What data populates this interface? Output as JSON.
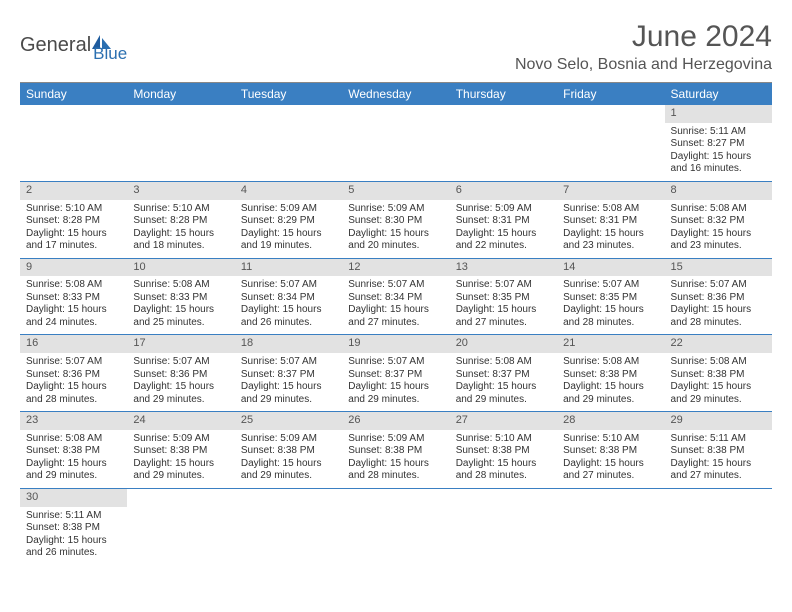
{
  "logo": {
    "text1": "General",
    "text2": "Blue"
  },
  "header": {
    "month_title": "June 2024",
    "location": "Novo Selo, Bosnia and Herzegovina"
  },
  "colors": {
    "header_bg": "#3a7fc2",
    "header_fg": "#ffffff",
    "daynum_bg": "#e2e2e2",
    "row_border": "#3a7fc2",
    "title_color": "#555555",
    "logo_blue": "#2b6fb0"
  },
  "columns": [
    "Sunday",
    "Monday",
    "Tuesday",
    "Wednesday",
    "Thursday",
    "Friday",
    "Saturday"
  ],
  "weeks": [
    [
      null,
      null,
      null,
      null,
      null,
      null,
      {
        "n": "1",
        "sr": "Sunrise: 5:11 AM",
        "ss": "Sunset: 8:27 PM",
        "dl1": "Daylight: 15 hours",
        "dl2": "and 16 minutes."
      }
    ],
    [
      {
        "n": "2",
        "sr": "Sunrise: 5:10 AM",
        "ss": "Sunset: 8:28 PM",
        "dl1": "Daylight: 15 hours",
        "dl2": "and 17 minutes."
      },
      {
        "n": "3",
        "sr": "Sunrise: 5:10 AM",
        "ss": "Sunset: 8:28 PM",
        "dl1": "Daylight: 15 hours",
        "dl2": "and 18 minutes."
      },
      {
        "n": "4",
        "sr": "Sunrise: 5:09 AM",
        "ss": "Sunset: 8:29 PM",
        "dl1": "Daylight: 15 hours",
        "dl2": "and 19 minutes."
      },
      {
        "n": "5",
        "sr": "Sunrise: 5:09 AM",
        "ss": "Sunset: 8:30 PM",
        "dl1": "Daylight: 15 hours",
        "dl2": "and 20 minutes."
      },
      {
        "n": "6",
        "sr": "Sunrise: 5:09 AM",
        "ss": "Sunset: 8:31 PM",
        "dl1": "Daylight: 15 hours",
        "dl2": "and 22 minutes."
      },
      {
        "n": "7",
        "sr": "Sunrise: 5:08 AM",
        "ss": "Sunset: 8:31 PM",
        "dl1": "Daylight: 15 hours",
        "dl2": "and 23 minutes."
      },
      {
        "n": "8",
        "sr": "Sunrise: 5:08 AM",
        "ss": "Sunset: 8:32 PM",
        "dl1": "Daylight: 15 hours",
        "dl2": "and 23 minutes."
      }
    ],
    [
      {
        "n": "9",
        "sr": "Sunrise: 5:08 AM",
        "ss": "Sunset: 8:33 PM",
        "dl1": "Daylight: 15 hours",
        "dl2": "and 24 minutes."
      },
      {
        "n": "10",
        "sr": "Sunrise: 5:08 AM",
        "ss": "Sunset: 8:33 PM",
        "dl1": "Daylight: 15 hours",
        "dl2": "and 25 minutes."
      },
      {
        "n": "11",
        "sr": "Sunrise: 5:07 AM",
        "ss": "Sunset: 8:34 PM",
        "dl1": "Daylight: 15 hours",
        "dl2": "and 26 minutes."
      },
      {
        "n": "12",
        "sr": "Sunrise: 5:07 AM",
        "ss": "Sunset: 8:34 PM",
        "dl1": "Daylight: 15 hours",
        "dl2": "and 27 minutes."
      },
      {
        "n": "13",
        "sr": "Sunrise: 5:07 AM",
        "ss": "Sunset: 8:35 PM",
        "dl1": "Daylight: 15 hours",
        "dl2": "and 27 minutes."
      },
      {
        "n": "14",
        "sr": "Sunrise: 5:07 AM",
        "ss": "Sunset: 8:35 PM",
        "dl1": "Daylight: 15 hours",
        "dl2": "and 28 minutes."
      },
      {
        "n": "15",
        "sr": "Sunrise: 5:07 AM",
        "ss": "Sunset: 8:36 PM",
        "dl1": "Daylight: 15 hours",
        "dl2": "and 28 minutes."
      }
    ],
    [
      {
        "n": "16",
        "sr": "Sunrise: 5:07 AM",
        "ss": "Sunset: 8:36 PM",
        "dl1": "Daylight: 15 hours",
        "dl2": "and 28 minutes."
      },
      {
        "n": "17",
        "sr": "Sunrise: 5:07 AM",
        "ss": "Sunset: 8:36 PM",
        "dl1": "Daylight: 15 hours",
        "dl2": "and 29 minutes."
      },
      {
        "n": "18",
        "sr": "Sunrise: 5:07 AM",
        "ss": "Sunset: 8:37 PM",
        "dl1": "Daylight: 15 hours",
        "dl2": "and 29 minutes."
      },
      {
        "n": "19",
        "sr": "Sunrise: 5:07 AM",
        "ss": "Sunset: 8:37 PM",
        "dl1": "Daylight: 15 hours",
        "dl2": "and 29 minutes."
      },
      {
        "n": "20",
        "sr": "Sunrise: 5:08 AM",
        "ss": "Sunset: 8:37 PM",
        "dl1": "Daylight: 15 hours",
        "dl2": "and 29 minutes."
      },
      {
        "n": "21",
        "sr": "Sunrise: 5:08 AM",
        "ss": "Sunset: 8:38 PM",
        "dl1": "Daylight: 15 hours",
        "dl2": "and 29 minutes."
      },
      {
        "n": "22",
        "sr": "Sunrise: 5:08 AM",
        "ss": "Sunset: 8:38 PM",
        "dl1": "Daylight: 15 hours",
        "dl2": "and 29 minutes."
      }
    ],
    [
      {
        "n": "23",
        "sr": "Sunrise: 5:08 AM",
        "ss": "Sunset: 8:38 PM",
        "dl1": "Daylight: 15 hours",
        "dl2": "and 29 minutes."
      },
      {
        "n": "24",
        "sr": "Sunrise: 5:09 AM",
        "ss": "Sunset: 8:38 PM",
        "dl1": "Daylight: 15 hours",
        "dl2": "and 29 minutes."
      },
      {
        "n": "25",
        "sr": "Sunrise: 5:09 AM",
        "ss": "Sunset: 8:38 PM",
        "dl1": "Daylight: 15 hours",
        "dl2": "and 29 minutes."
      },
      {
        "n": "26",
        "sr": "Sunrise: 5:09 AM",
        "ss": "Sunset: 8:38 PM",
        "dl1": "Daylight: 15 hours",
        "dl2": "and 28 minutes."
      },
      {
        "n": "27",
        "sr": "Sunrise: 5:10 AM",
        "ss": "Sunset: 8:38 PM",
        "dl1": "Daylight: 15 hours",
        "dl2": "and 28 minutes."
      },
      {
        "n": "28",
        "sr": "Sunrise: 5:10 AM",
        "ss": "Sunset: 8:38 PM",
        "dl1": "Daylight: 15 hours",
        "dl2": "and 27 minutes."
      },
      {
        "n": "29",
        "sr": "Sunrise: 5:11 AM",
        "ss": "Sunset: 8:38 PM",
        "dl1": "Daylight: 15 hours",
        "dl2": "and 27 minutes."
      }
    ],
    [
      {
        "n": "30",
        "sr": "Sunrise: 5:11 AM",
        "ss": "Sunset: 8:38 PM",
        "dl1": "Daylight: 15 hours",
        "dl2": "and 26 minutes."
      },
      null,
      null,
      null,
      null,
      null,
      null
    ]
  ]
}
